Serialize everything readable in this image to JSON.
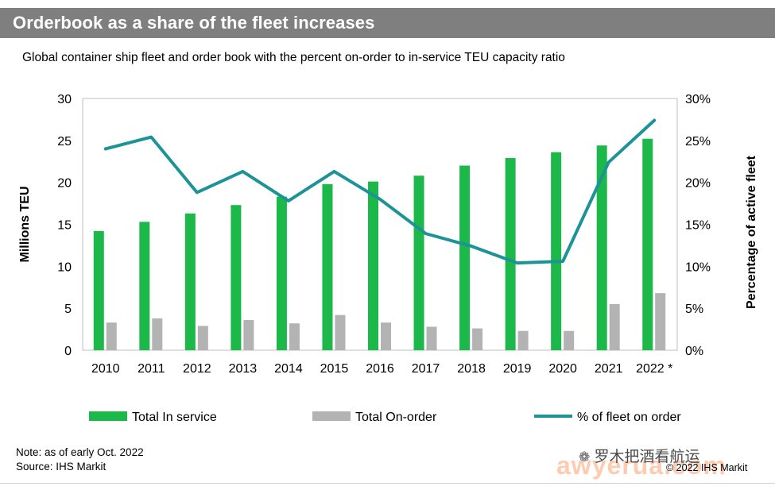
{
  "header": {
    "title": "Orderbook as a share of the fleet increases",
    "subtitle": "Global container ship fleet and order book with the percent on-order to in-service TEU capacity ratio"
  },
  "colors": {
    "title_bg": "#7f7f7f",
    "in_service": "#1db84a",
    "on_order": "#b3b3b3",
    "pct_line": "#1c9497"
  },
  "chart_data": {
    "type": "bar",
    "title": "Orderbook as a share of the fleet increases",
    "subtitle": "Global container ship fleet and order book with the percent on-order to in-service TEU capacity ratio",
    "categories": [
      "2010",
      "2011",
      "2012",
      "2013",
      "2014",
      "2015",
      "2016",
      "2017",
      "2018",
      "2019",
      "2020",
      "2021",
      "2022 *"
    ],
    "ylabel": "Millions TEU",
    "ylabel_right": "Percentage of active fleet",
    "ylim": [
      0,
      30
    ],
    "ylim_right": [
      0,
      30
    ],
    "yticks": [
      "0",
      "5",
      "10",
      "15",
      "20",
      "25",
      "30"
    ],
    "yticks_right": [
      "0%",
      "5%",
      "10%",
      "15%",
      "20%",
      "25%",
      "30%"
    ],
    "legend_position": "bottom",
    "grid": false,
    "series": [
      {
        "name": "Total In service",
        "kind": "bar",
        "axis": "left",
        "values": [
          14.2,
          15.3,
          16.3,
          17.3,
          18.3,
          19.8,
          20.1,
          20.8,
          22.0,
          22.9,
          23.6,
          24.4,
          25.2
        ]
      },
      {
        "name": "Total On-order",
        "kind": "bar",
        "axis": "left",
        "values": [
          3.3,
          3.8,
          2.9,
          3.6,
          3.2,
          4.2,
          3.3,
          2.8,
          2.6,
          2.3,
          2.3,
          5.5,
          6.8
        ]
      },
      {
        "name": "% of fleet on order",
        "kind": "line",
        "axis": "right",
        "values": [
          24.0,
          25.4,
          18.8,
          21.3,
          17.8,
          21.3,
          18.0,
          13.9,
          12.4,
          10.4,
          10.6,
          22.4,
          27.4
        ]
      }
    ]
  },
  "notes": {
    "note": "Note: as of early Oct. 2022",
    "source": "Source: IHS Markit",
    "copyright": "© 2022 IHS Markit"
  },
  "watermark": {
    "line": "罗木把酒看航运",
    "domain": "awyerua.com"
  }
}
